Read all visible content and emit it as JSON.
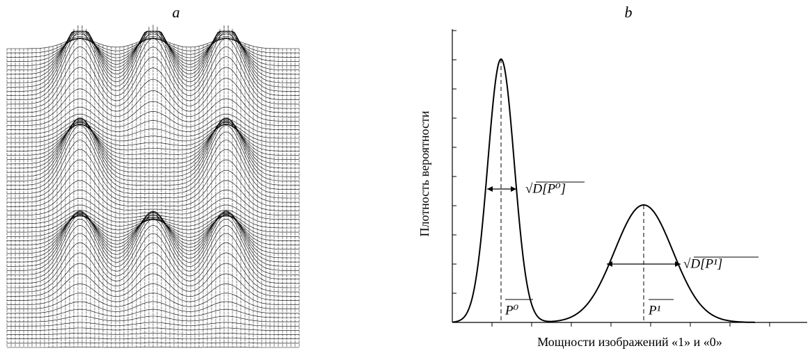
{
  "panels": [
    {
      "label": "a"
    },
    {
      "label": "b",
      "y_label": "Плотность вероятности",
      "x_label": "Мощности изображений «1» и «0»",
      "annotations": [
        "√D[P⁰]",
        "√D[P¹]",
        "P⁰",
        "P¹"
      ]
    }
  ]
}
